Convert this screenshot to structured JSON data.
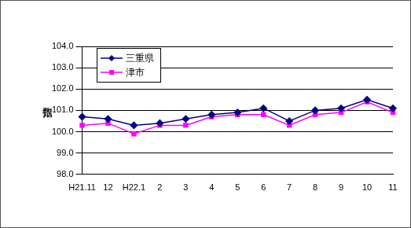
{
  "chart_data": {
    "type": "line",
    "y_label": "指数",
    "categories": [
      "H21.11",
      "12",
      "H22.1",
      "2",
      "3",
      "4",
      "5",
      "6",
      "7",
      "8",
      "9",
      "10",
      "11"
    ],
    "series": [
      {
        "name": "三重県",
        "color": "#000080",
        "marker": "diamond",
        "values": [
          100.7,
          100.6,
          100.3,
          100.4,
          100.6,
          100.8,
          100.9,
          101.1,
          100.5,
          101.0,
          101.1,
          101.5,
          101.1
        ]
      },
      {
        "name": "津市",
        "color": "#ff00ff",
        "marker": "square",
        "values": [
          100.3,
          100.4,
          99.9,
          100.3,
          100.3,
          100.7,
          100.8,
          100.8,
          100.3,
          100.8,
          100.9,
          101.4,
          100.9
        ]
      }
    ],
    "ylim": [
      98,
      104
    ],
    "yticks": [
      {
        "value": 98,
        "label": "98.0"
      },
      {
        "value": 99,
        "label": "99.0"
      },
      {
        "value": 100,
        "label": "100.0"
      },
      {
        "value": 101,
        "label": "101.0"
      },
      {
        "value": 102,
        "label": "102.0"
      },
      {
        "value": 103,
        "label": "103.0"
      },
      {
        "value": 104,
        "label": "104.0"
      }
    ],
    "grid": true,
    "legend": "upper left"
  }
}
